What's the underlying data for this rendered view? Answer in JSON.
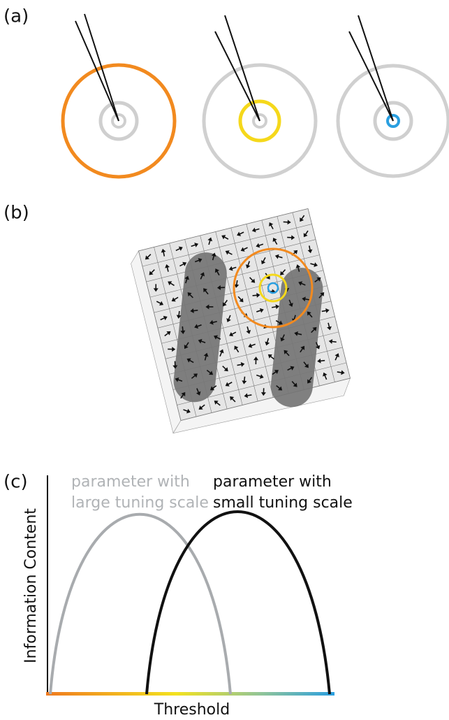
{
  "panels": {
    "a": {
      "label": "(a)"
    },
    "b": {
      "label": "(b)"
    },
    "c": {
      "label": "(c)",
      "large_scale": [
        "parameter with",
        "large tuning scale"
      ],
      "small_scale": [
        "parameter with",
        "small tuning scale"
      ],
      "y_axis": "Information Content",
      "x_axis": "Threshold"
    }
  }
}
